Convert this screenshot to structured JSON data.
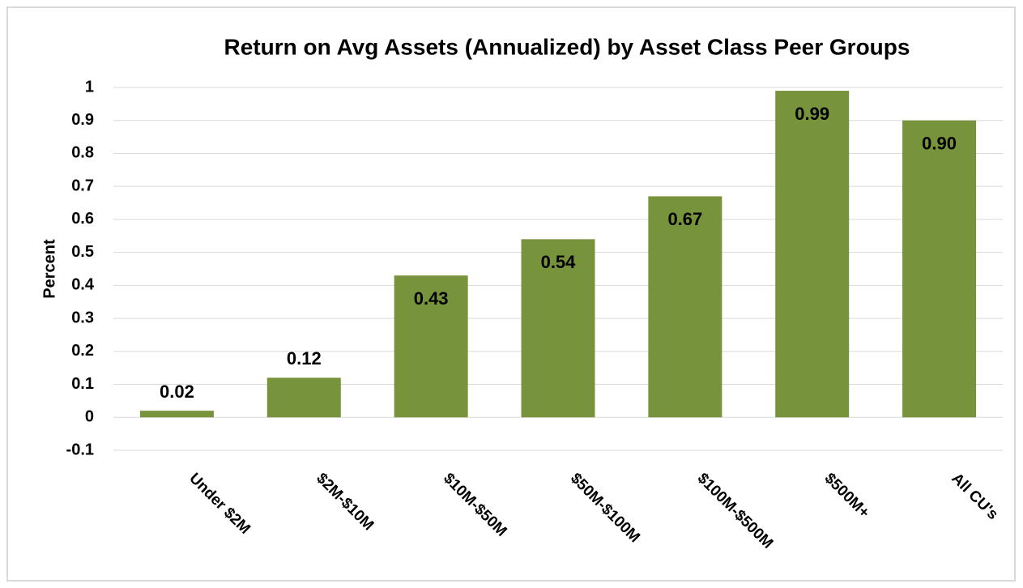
{
  "chart_data": {
    "type": "bar",
    "title": "Return on Avg Assets (Annualized)  by Asset Class Peer Groups",
    "y_label": "Percent",
    "categories": [
      "Under $2M",
      "$2M-$10M",
      "$10M-$50M",
      "$50M-$100M",
      "$100M-$500M",
      "$500M+",
      "All CU's"
    ],
    "values": [
      0.02,
      0.12,
      0.43,
      0.54,
      0.67,
      0.99,
      0.9
    ],
    "value_labels": [
      "0.02",
      "0.12",
      "0.43",
      "0.54",
      "0.67",
      "0.99",
      "0.90"
    ],
    "color": "#77933c",
    "ylim": [
      -0.1,
      1
    ],
    "yticks": [
      -0.1,
      0,
      0.1,
      0.2,
      0.3,
      0.4,
      0.5,
      0.6,
      0.7,
      0.8,
      0.9,
      1
    ],
    "grid": true
  }
}
